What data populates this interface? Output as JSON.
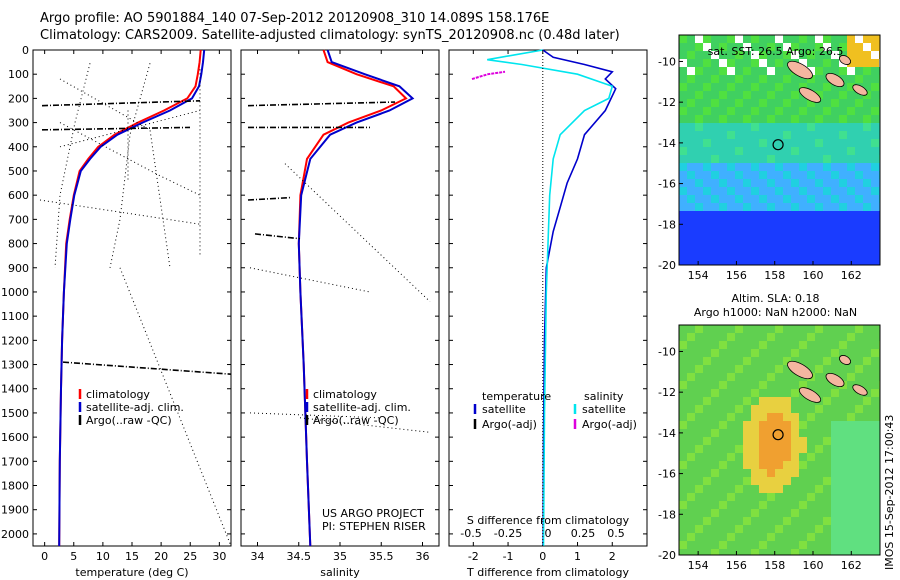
{
  "header": {
    "line1": "Argo profile: AO 5901884_140 07-Sep-2012 20120908_310 14.089S 158.176E",
    "line2": "Climatology: CARS2009. Satellite-adjusted climatology: synTS_20120908.nc (0.48d later)"
  },
  "colors": {
    "climatology": "#ff0000",
    "satellite": "#0000cc",
    "argo": "#000000",
    "satellite_salinity": "#00e5ee",
    "argo_salinity": "#dd00dd"
  },
  "depth_axis": {
    "ticks": [
      0,
      100,
      200,
      300,
      400,
      500,
      600,
      700,
      800,
      900,
      1000,
      1100,
      1200,
      1300,
      1400,
      1500,
      1600,
      1700,
      1800,
      1900,
      2000
    ],
    "range": [
      0,
      2050
    ]
  },
  "chart_data": [
    {
      "type": "line",
      "xlabel": "temperature (deg C)",
      "xticks": [
        0,
        5,
        10,
        15,
        20,
        25,
        30
      ],
      "xlim": [
        -2,
        32
      ],
      "legend": [
        "climatology",
        "satellite-adj. clim.",
        "Argo(..raw -QC)"
      ],
      "series": [
        {
          "name": "climatology",
          "x": [
            26.8,
            26.6,
            26.3,
            25.9,
            24.5,
            20.5,
            16.0,
            12.0,
            9.2,
            7.5,
            6.0,
            5.0,
            4.3,
            3.7,
            3.3,
            3.0,
            2.8,
            2.6,
            2.5
          ],
          "y": [
            0,
            50,
            100,
            150,
            200,
            250,
            300,
            350,
            400,
            450,
            500,
            600,
            700,
            800,
            1000,
            1200,
            1400,
            1700,
            2050
          ]
        },
        {
          "name": "satellite-adj. clim.",
          "x": [
            27.4,
            27.2,
            26.9,
            26.5,
            25.3,
            21.5,
            16.8,
            12.5,
            9.6,
            7.8,
            6.2,
            5.1,
            4.4,
            3.8,
            3.3,
            3.0,
            2.8,
            2.6,
            2.5
          ],
          "y": [
            0,
            50,
            100,
            150,
            200,
            250,
            300,
            350,
            400,
            450,
            500,
            600,
            700,
            800,
            1000,
            1200,
            1400,
            1700,
            2050
          ]
        }
      ]
    },
    {
      "type": "line",
      "xlabel": "salinity",
      "xticks": [
        34,
        34.5,
        35,
        35.5,
        36
      ],
      "xlim": [
        33.8,
        36.2
      ],
      "legend": [
        "climatology",
        "satellite-adj. clim.",
        "Argo(..raw -QC)"
      ],
      "series": [
        {
          "name": "climatology",
          "x": [
            34.8,
            34.85,
            35.2,
            35.65,
            35.8,
            35.5,
            35.1,
            34.8,
            34.6,
            34.52,
            34.5,
            34.52,
            34.56,
            34.6,
            34.64
          ],
          "y": [
            0,
            50,
            100,
            150,
            200,
            250,
            300,
            350,
            450,
            600,
            800,
            1000,
            1300,
            1700,
            2050
          ]
        },
        {
          "name": "satellite-adj. clim.",
          "x": [
            34.85,
            34.9,
            35.3,
            35.72,
            35.88,
            35.6,
            35.2,
            34.88,
            34.64,
            34.53,
            34.5,
            34.52,
            34.56,
            34.6,
            34.64
          ],
          "y": [
            0,
            50,
            100,
            150,
            200,
            250,
            300,
            350,
            450,
            600,
            800,
            1000,
            1300,
            1700,
            2050
          ]
        }
      ]
    },
    {
      "type": "line",
      "xlabel": "T difference from climatology",
      "xticks": [
        -2,
        -1,
        0,
        1,
        2
      ],
      "x2label": "S difference from climatology",
      "x2ticks": [
        "-0.5",
        "-0.25",
        "0",
        "0.25",
        "0.5"
      ],
      "xlim": [
        -2.7,
        3.0
      ],
      "legend_titles": [
        "temperature",
        "salinity"
      ],
      "legend": [
        "satellite",
        "Argo(-adj)",
        "satellite",
        "Argo(-adj)"
      ],
      "series": [
        {
          "name": "satellite",
          "x": [
            0,
            0.3,
            1.2,
            2.0,
            1.8,
            2.1,
            1.8,
            1.2,
            1.0,
            0.7,
            0.5,
            0.3,
            0.1,
            0.05,
            0.02,
            0.01
          ],
          "y": [
            0,
            30,
            60,
            90,
            120,
            160,
            250,
            350,
            450,
            550,
            650,
            750,
            900,
            1200,
            1600,
            2050
          ]
        },
        {
          "name": "satellite",
          "x": [
            0,
            -0.8,
            -1.6,
            -0.6,
            1.0,
            2.0,
            1.9,
            1.2,
            0.5,
            0.3,
            0.2,
            0.15,
            0.1,
            0.05,
            0.02
          ],
          "y": [
            0,
            20,
            40,
            60,
            100,
            150,
            200,
            250,
            350,
            450,
            600,
            800,
            1000,
            1500,
            2050
          ]
        }
      ]
    }
  ],
  "maps": [
    {
      "title": "sat. SST: 26.5 Argo: 26.5",
      "xticks": [
        154,
        156,
        158,
        160,
        162
      ],
      "yticks": [
        -10,
        -12,
        -14,
        -16,
        -18,
        -20
      ],
      "xlim": [
        153,
        163.5
      ],
      "ylim": [
        -20,
        -8.7
      ],
      "marker": [
        158.176,
        -14.089
      ]
    },
    {
      "title1": "Altim. SLA: 0.18",
      "title2": "Argo h1000: NaN h2000: NaN",
      "xticks": [
        154,
        156,
        158,
        160,
        162
      ],
      "yticks": [
        -10,
        -12,
        -14,
        -16,
        -18,
        -20
      ],
      "xlim": [
        153,
        163.5
      ],
      "ylim": [
        -20,
        -8.7
      ],
      "marker": [
        158.176,
        -14.089
      ]
    }
  ],
  "credits": {
    "project": "US ARGO PROJECT",
    "pi": "PI: STEPHEN RISER",
    "stamp": "IMOS 15-Sep-2012 17:00:43"
  }
}
